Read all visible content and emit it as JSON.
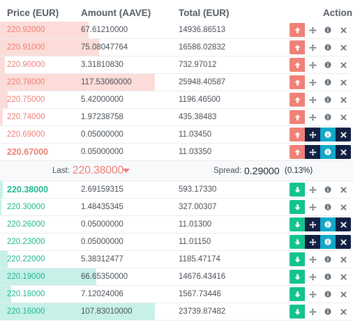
{
  "colors": {
    "ask_text": "#ec7f73",
    "bid_text": "#1fb68f",
    "ask_depth": "#fcdcd9",
    "bid_depth": "#c7f1e8",
    "buy_button": "#f08178",
    "sell_button": "#14c38e",
    "dark_button": "#122043",
    "info_button": "#11a8c9"
  },
  "header": {
    "price": "Price (EUR)",
    "amount": "Amount (AAVE)",
    "total": "Total (EUR)",
    "action": "Action"
  },
  "spread": {
    "last_label": "Last:",
    "last_value": "220.38000",
    "spread_label": "Spread:",
    "spread_value": "0.29000",
    "spread_pct": "(0.13%)"
  },
  "asks": [
    {
      "price": "220.92000",
      "amount": "67.61210000",
      "total": "14936.86513",
      "depth": 0.57
    },
    {
      "price": "220.91000",
      "amount": "75.08047764",
      "total": "16586.02832",
      "depth": 0.64
    },
    {
      "price": "220.90000",
      "amount": "3.31810830",
      "total": "732.97012",
      "depth": 0.03
    },
    {
      "price": "220.78000",
      "amount": "117.53060000",
      "total": "25948.40587",
      "depth": 1.0
    },
    {
      "price": "220.75000",
      "amount": "5.42000000",
      "total": "1196.46500",
      "depth": 0.05
    },
    {
      "price": "220.74000",
      "amount": "1.97238758",
      "total": "435.38483",
      "depth": 0.02
    },
    {
      "price": "220.69000",
      "amount": "0.05000000",
      "total": "11.03450",
      "depth": 0.0
    },
    {
      "price": "220.67000",
      "amount": "0.05000000",
      "total": "11.03350",
      "depth": 0.0
    }
  ],
  "bids": [
    {
      "price": "220.38000",
      "amount": "2.69159315",
      "total": "593.17330",
      "depth": 0.02
    },
    {
      "price": "220.30000",
      "amount": "1.48435345",
      "total": "327.00307",
      "depth": 0.01
    },
    {
      "price": "220.26000",
      "amount": "0.05000000",
      "total": "11.01300",
      "depth": 0.0
    },
    {
      "price": "220.23000",
      "amount": "0.05000000",
      "total": "11.01150",
      "depth": 0.0
    },
    {
      "price": "220.22000",
      "amount": "5.38312477",
      "total": "1185.47174",
      "depth": 0.05
    },
    {
      "price": "220.19000",
      "amount": "66.65350000",
      "total": "14676.43416",
      "depth": 0.62
    },
    {
      "price": "220.18000",
      "amount": "7.12024006",
      "total": "1567.73446",
      "depth": 0.07
    },
    {
      "price": "220.16000",
      "amount": "107.83010000",
      "total": "23739.87482",
      "depth": 1.0
    }
  ]
}
